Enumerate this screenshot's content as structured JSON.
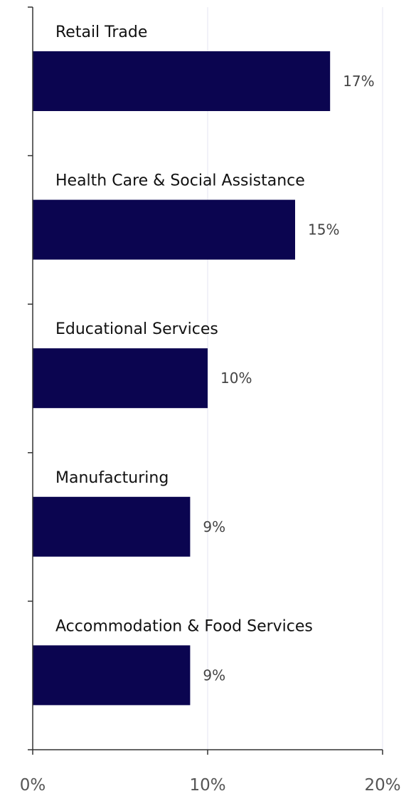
{
  "chart_data": {
    "type": "bar",
    "orientation": "horizontal",
    "categories": [
      "Retail Trade",
      "Health Care & Social Assistance",
      "Educational Services",
      "Manufacturing",
      "Accommodation  & Food Services"
    ],
    "values": [
      17,
      15,
      10,
      9,
      9
    ],
    "value_labels": [
      "17%",
      "15%",
      "10%",
      "9%",
      "9%"
    ],
    "xlim": [
      0,
      20
    ],
    "xticks": [
      0,
      10,
      20
    ],
    "xtick_labels": [
      "0%",
      "10%",
      "20%"
    ],
    "bar_color": "#0b0550",
    "grid": "vertical",
    "grid_color": "#e6e6f2",
    "axis_color": "#333333"
  }
}
